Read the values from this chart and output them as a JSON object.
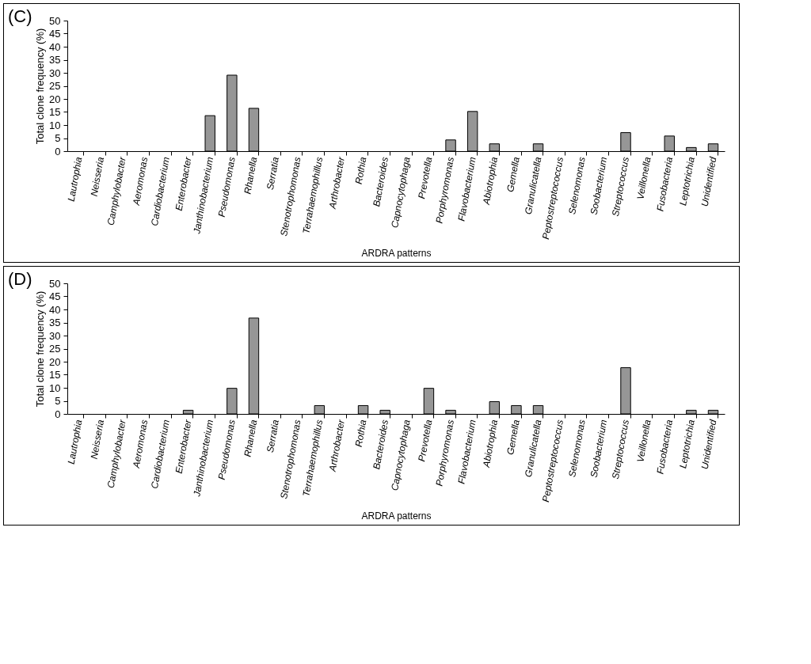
{
  "chart_data": [
    {
      "type": "bar",
      "title": "(C)",
      "xlabel": "ARDRA patterns",
      "ylabel": "Total clone frequency (%)",
      "categories": [
        "Lautrophia",
        "Neisseria",
        "Camphylobacter",
        "Aeromonas",
        "Cardiobacterium",
        "Enterobacter",
        "Janthinobacterium",
        "Pseudomonas",
        "Rhanella",
        "Serratia",
        "Stenotrophomonas",
        "Terrahaemophillus",
        "Arthrobacter",
        "Rothia",
        "Bacteroides",
        "Capnocytophaga",
        "Prevotella",
        "Porphyromonas",
        "Flavobacterium",
        "Abiotrophia",
        "Gemella",
        "Granulicatella",
        "Peptostreptococcus",
        "Selenomonas",
        "Soobacterium",
        "Streptococcus",
        "Veillonella",
        "Fusobacteria",
        "Leptotrichia",
        "Unidentified"
      ],
      "values": [
        0,
        0,
        0,
        0,
        0,
        0,
        13.6,
        29.1,
        16.4,
        0,
        0,
        0,
        0,
        0,
        0,
        0,
        0,
        4.3,
        15.2,
        2.8,
        0,
        2.8,
        0,
        0,
        0,
        7.1,
        0,
        5.8,
        1.4,
        2.8
      ],
      "color": "#969696",
      "ylim": [
        0,
        50
      ],
      "yticks": [
        0,
        5,
        10,
        15,
        20,
        25,
        30,
        35,
        40,
        45,
        50
      ],
      "grid": false
    },
    {
      "type": "bar",
      "title": "(D)",
      "xlabel": "ARDRA patterns",
      "ylabel": "Total clone frequency (%)",
      "categories": [
        "Lautrophia",
        "Neisseria",
        "Camphylobacter",
        "Aeromonas",
        "Cardiobacterium",
        "Enterobacter",
        "Janthinobacterium",
        "Pseudomonas",
        "Rhanella",
        "Serratia",
        "Stenotrophomonas",
        "Terrahaemophillus",
        "Arthrobacter",
        "Rothia",
        "Bacteroides",
        "Capnocytophaga",
        "Prevotella",
        "Porphyromonas",
        "Flavobacterium",
        "Abiotrophia",
        "Gemella",
        "Granulicatella",
        "Peptostreptococcus",
        "Selenomonas",
        "Soobacterium",
        "Streptococcus",
        "Veillonella",
        "Fusobacteria",
        "Leptotrichia",
        "Unidentified"
      ],
      "values": [
        0,
        0,
        0,
        0,
        0,
        1.4,
        0,
        9.8,
        36.7,
        0,
        0,
        3.2,
        0,
        3.2,
        1.4,
        0,
        9.8,
        1.4,
        0,
        4.7,
        3.2,
        3.2,
        0,
        0,
        0,
        17.7,
        0,
        0,
        1.4,
        1.4
      ],
      "color": "#969696",
      "ylim": [
        0,
        50
      ],
      "yticks": [
        0,
        5,
        10,
        15,
        20,
        25,
        30,
        35,
        40,
        45,
        50
      ],
      "grid": false
    }
  ]
}
